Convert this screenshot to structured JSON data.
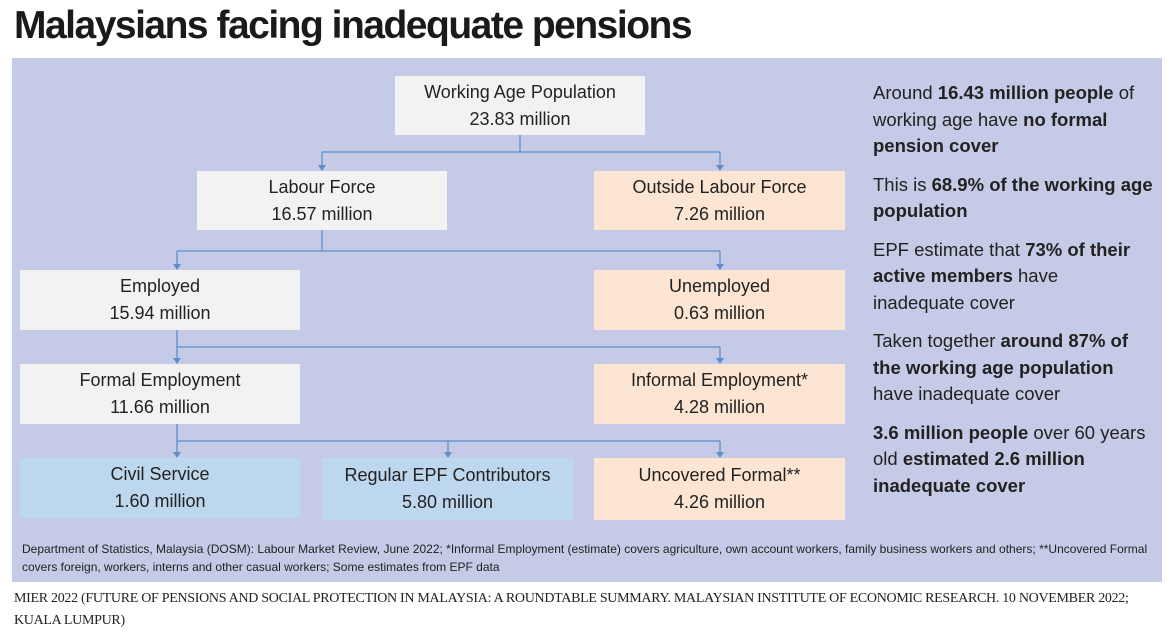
{
  "title": "Malaysians facing inadequate pensions",
  "colors": {
    "panel": "#c5cbe6",
    "grey_box": "#f2f2f2",
    "peach_box": "#fde5d3",
    "blue_box": "#bdd7ee",
    "connector": "#5b8fc9"
  },
  "nodes": {
    "wap": {
      "label": "Working Age Population",
      "value": "23.83 million"
    },
    "labour": {
      "label": "Labour Force",
      "value": "16.57 million"
    },
    "outside": {
      "label": "Outside Labour Force",
      "value": "7.26 million"
    },
    "employed": {
      "label": "Employed",
      "value": "15.94 million"
    },
    "unemployed": {
      "label": "Unemployed",
      "value": "0.63 million"
    },
    "formal": {
      "label": "Formal Employment",
      "value": "11.66 million"
    },
    "informal": {
      "label": "Informal Employment*",
      "value": "4.28 million"
    },
    "civil": {
      "label": "Civil Service",
      "value": "1.60 million"
    },
    "epf": {
      "label": "Regular EPF Contributors",
      "value": "5.80 million"
    },
    "uncovered": {
      "label": "Uncovered Formal**",
      "value": "4.26 million"
    }
  },
  "notes": [
    [
      {
        "t": "Around ",
        "b": false
      },
      {
        "t": "16.43 million people",
        "b": true
      },
      {
        "t": " of working age have ",
        "b": false
      },
      {
        "t": "no formal pension cover",
        "b": true
      }
    ],
    [
      {
        "t": "This is ",
        "b": false
      },
      {
        "t": "68.9% of the working age population",
        "b": true
      }
    ],
    [
      {
        "t": "EPF estimate that ",
        "b": false
      },
      {
        "t": "73% of their active members",
        "b": true
      },
      {
        "t": " have inadequate cover",
        "b": false
      }
    ],
    [
      {
        "t": "Taken together ",
        "b": false
      },
      {
        "t": "around 87% of the working age population",
        "b": true
      },
      {
        "t": " have inadequate cover",
        "b": false
      }
    ],
    [
      {
        "t": "3.6 million people",
        "b": true
      },
      {
        "t": " over 60 years old ",
        "b": false
      },
      {
        "t": "estimated 2.6 million inadequate cover",
        "b": true
      }
    ]
  ],
  "source": "Department of Statistics, Malaysia (DOSM): Labour Market Review, June 2022; *Informal Employment (estimate) covers agriculture, own account workers, family business workers and others; **Uncovered Formal covers foreign, workers, interns and other casual workers; Some estimates from EPF data",
  "credit": "MIER 2022 (FUTURE OF PENSIONS AND SOCIAL PROTECTION IN MALAYSIA: A ROUNDTABLE SUMMARY. MALAYSIAN INSTITUTE OF ECONOMIC RESEARCH. 10 NOVEMBER 2022; KUALA LUMPUR)"
}
